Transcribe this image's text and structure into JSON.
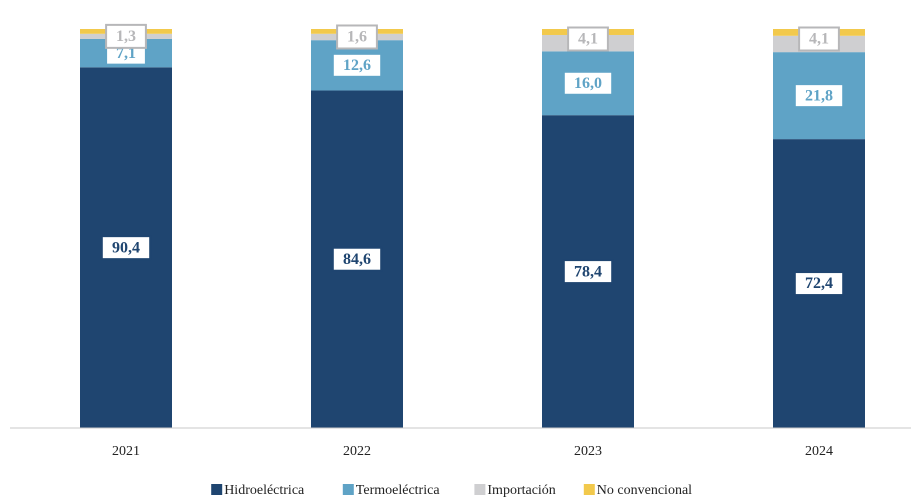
{
  "chart_data": {
    "type": "bar",
    "stacked": true,
    "title": "",
    "xlabel": "",
    "ylabel": "",
    "ylim": [
      0,
      100
    ],
    "grid": false,
    "legend_position": "bottom",
    "categories": [
      "2021",
      "2022",
      "2023",
      "2024"
    ],
    "series": [
      {
        "name": "Hidroeléctrica",
        "color": "#1f4570",
        "label_text_color": "#1f4570",
        "label_border_color": "#1f4570",
        "values": [
          90.4,
          84.6,
          78.4,
          72.4
        ],
        "labels": [
          "90,4",
          "84,6",
          "78,4",
          "72,4"
        ]
      },
      {
        "name": "Termoeléctrica",
        "color": "#5fa3c6",
        "label_text_color": "#5fa3c6",
        "label_border_color": "#5fa3c6",
        "values": [
          7.1,
          12.6,
          16.0,
          21.8
        ],
        "labels": [
          "7,1",
          "12,6",
          "16,0",
          "21,8"
        ]
      },
      {
        "name": "Importación",
        "color": "#cfcfd1",
        "label_text_color": "#b7b7b9",
        "label_border_color": "#b7b7b9",
        "values": [
          1.3,
          1.6,
          4.1,
          4.1
        ],
        "labels": [
          "1,3",
          "1,6",
          "4,1",
          "4,1"
        ]
      },
      {
        "name": "No convencional",
        "color": "#f2c94c",
        "values": [
          1.2,
          1.2,
          1.5,
          1.7
        ],
        "labels": [
          "",
          "",
          "",
          ""
        ]
      }
    ]
  }
}
